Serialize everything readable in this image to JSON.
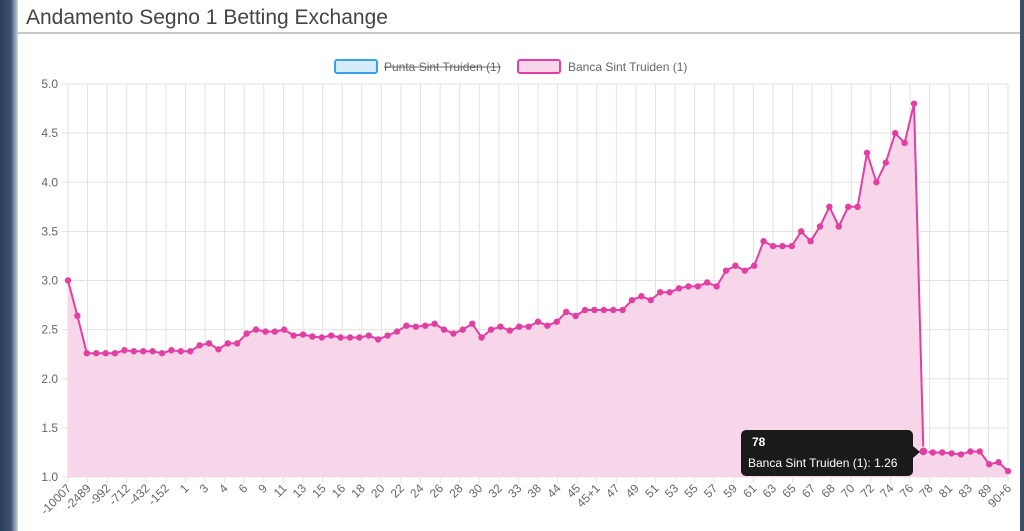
{
  "page": {
    "title": "Andamento Segno 1 Betting Exchange"
  },
  "chart_data": {
    "type": "line",
    "title": "",
    "xlabel": "",
    "ylabel": "",
    "ylim": [
      1.0,
      5.0
    ],
    "yticks": [
      "5.0",
      "4.5",
      "4.0",
      "3.5",
      "3.0",
      "2.5",
      "2.0",
      "1.5",
      "1.0"
    ],
    "grid": true,
    "legend_position": "top-center",
    "x_ticks": [
      "-10007",
      "-2489",
      "-992",
      "-712",
      "-432",
      "-152",
      "1",
      "3",
      "4",
      "6",
      "9",
      "11",
      "13",
      "15",
      "16",
      "18",
      "20",
      "22",
      "24",
      "26",
      "28",
      "30",
      "32",
      "33",
      "38",
      "44",
      "45",
      "45+1",
      "47",
      "49",
      "51",
      "53",
      "55",
      "57",
      "59",
      "61",
      "63",
      "65",
      "67",
      "68",
      "70",
      "72",
      "74",
      "76",
      "78",
      "81",
      "83",
      "89",
      "90+6"
    ],
    "series": [
      {
        "name": "Punta Sint Truiden (1)",
        "hidden": true,
        "color": "#36a2eb",
        "fill": "#d7ecfb",
        "values": []
      },
      {
        "name": "Banca Sint Truiden (1)",
        "hidden": false,
        "color": "#e23ea3",
        "fill": "#f8d6ea",
        "values": [
          3.0,
          2.64,
          2.26,
          2.26,
          2.26,
          2.26,
          2.29,
          2.28,
          2.28,
          2.28,
          2.26,
          2.29,
          2.28,
          2.28,
          2.34,
          2.36,
          2.3,
          2.36,
          2.36,
          2.46,
          2.5,
          2.48,
          2.48,
          2.5,
          2.44,
          2.45,
          2.43,
          2.42,
          2.44,
          2.42,
          2.42,
          2.42,
          2.44,
          2.4,
          2.44,
          2.48,
          2.54,
          2.53,
          2.54,
          2.56,
          2.5,
          2.46,
          2.5,
          2.56,
          2.42,
          2.5,
          2.53,
          2.49,
          2.53,
          2.53,
          2.58,
          2.54,
          2.58,
          2.68,
          2.64,
          2.7,
          2.7,
          2.7,
          2.7,
          2.7,
          2.8,
          2.84,
          2.8,
          2.88,
          2.88,
          2.92,
          2.94,
          2.94,
          2.98,
          2.94,
          3.1,
          3.15,
          3.1,
          3.15,
          3.4,
          3.35,
          3.35,
          3.35,
          3.5,
          3.4,
          3.55,
          3.75,
          3.55,
          3.75,
          3.75,
          4.3,
          4.0,
          4.2,
          4.5,
          4.4,
          4.8,
          1.26,
          1.25,
          1.25,
          1.24,
          1.23,
          1.26,
          1.26,
          1.13,
          1.15,
          1.06
        ]
      }
    ]
  },
  "tooltip": {
    "title": "78",
    "body": "Banca Sint Truiden (1): 1.26"
  }
}
